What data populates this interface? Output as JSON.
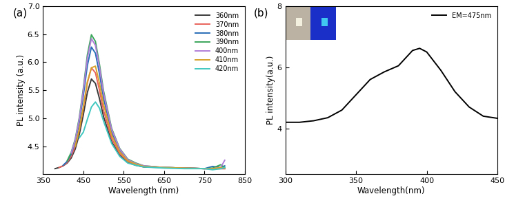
{
  "chart_data": [
    {
      "type": "line",
      "title": "(a)",
      "x_label": "Wavelength (nm)",
      "y_label": "PL intensity (a.u.)",
      "x": [
        380,
        390,
        400,
        410,
        420,
        430,
        440,
        450,
        460,
        470,
        480,
        490,
        500,
        520,
        540,
        560,
        580,
        600,
        650,
        700,
        750,
        770,
        790,
        800
      ],
      "series": [
        {
          "name": "360nm",
          "color": "#3a3a3a",
          "values": [
            4.1,
            4.12,
            4.15,
            4.2,
            4.29,
            4.45,
            4.71,
            5.06,
            5.46,
            5.7,
            5.62,
            5.35,
            5.03,
            4.58,
            4.34,
            4.21,
            4.16,
            4.13,
            4.12,
            4.11,
            4.1,
            4.1,
            4.1,
            4.1
          ]
        },
        {
          "name": "370nm",
          "color": "#e8625a",
          "values": [
            null,
            4.12,
            4.15,
            4.21,
            4.32,
            4.5,
            4.78,
            5.18,
            5.63,
            5.9,
            5.81,
            5.5,
            5.14,
            4.64,
            4.37,
            4.23,
            4.17,
            4.14,
            4.12,
            4.11,
            4.1,
            4.1,
            4.1,
            4.1
          ]
        },
        {
          "name": "380nm",
          "color": "#2a6eb8",
          "values": [
            null,
            null,
            4.16,
            4.23,
            4.36,
            4.58,
            4.92,
            5.4,
            5.94,
            6.27,
            6.16,
            5.79,
            5.36,
            4.75,
            4.43,
            4.25,
            4.19,
            4.14,
            4.12,
            4.11,
            4.1,
            4.14,
            4.12,
            4.15
          ]
        },
        {
          "name": "390nm",
          "color": "#3aa55a",
          "values": [
            null,
            null,
            null,
            4.24,
            4.39,
            4.63,
            5.01,
            5.53,
            6.13,
            6.49,
            6.37,
            5.96,
            5.49,
            4.82,
            4.46,
            4.27,
            4.2,
            4.15,
            4.12,
            4.11,
            4.1,
            4.11,
            4.17,
            4.12
          ]
        },
        {
          "name": "400nm",
          "color": "#b07fd8",
          "values": [
            null,
            null,
            null,
            null,
            4.38,
            4.61,
            4.98,
            5.49,
            6.07,
            6.42,
            6.3,
            5.91,
            5.45,
            4.8,
            4.45,
            4.26,
            4.19,
            4.15,
            4.12,
            4.11,
            4.1,
            4.1,
            4.12,
            4.25
          ]
        },
        {
          "name": "410nm",
          "color": "#d6a22a",
          "values": [
            null,
            null,
            null,
            null,
            null,
            4.5,
            4.8,
            5.2,
            5.65,
            5.9,
            5.93,
            5.62,
            5.25,
            4.7,
            4.4,
            4.24,
            4.18,
            4.14,
            4.12,
            4.11,
            4.1,
            4.1,
            4.12,
            4.11
          ]
        },
        {
          "name": "420nm",
          "color": "#40c8c0",
          "values": [
            null,
            null,
            null,
            null,
            null,
            null,
            4.65,
            4.75,
            4.98,
            5.2,
            5.29,
            5.18,
            4.95,
            4.55,
            4.32,
            4.2,
            4.16,
            4.13,
            4.11,
            4.1,
            4.1,
            4.08,
            4.1,
            4.12
          ]
        }
      ],
      "xlim": [
        350,
        850
      ],
      "xticks": [
        350,
        450,
        550,
        650,
        750,
        850
      ],
      "ylim": [
        4.0,
        7.0
      ],
      "yticks": [
        4.5,
        5.0,
        5.5,
        6.0,
        6.5,
        7.0
      ],
      "legend": "upper right"
    },
    {
      "type": "line",
      "title": "(b)",
      "x_label": "Wavelength(nm)",
      "y_label": "PL intensity(a.u.)",
      "x": [
        300,
        310,
        320,
        330,
        340,
        350,
        360,
        370,
        380,
        390,
        395,
        400,
        410,
        420,
        430,
        440,
        450
      ],
      "series": [
        {
          "name": "EM=475nm",
          "color": "#000000",
          "values": [
            4.2,
            4.2,
            4.25,
            4.35,
            4.6,
            5.1,
            5.6,
            5.85,
            6.05,
            6.55,
            6.62,
            6.5,
            5.9,
            5.2,
            4.7,
            4.4,
            4.33
          ]
        }
      ],
      "xlim": [
        300,
        450
      ],
      "xticks": [
        300,
        350,
        400,
        450
      ],
      "ylim": [
        2.5,
        8
      ],
      "yticks": [
        4,
        6,
        8
      ],
      "legend": "upper right"
    }
  ]
}
